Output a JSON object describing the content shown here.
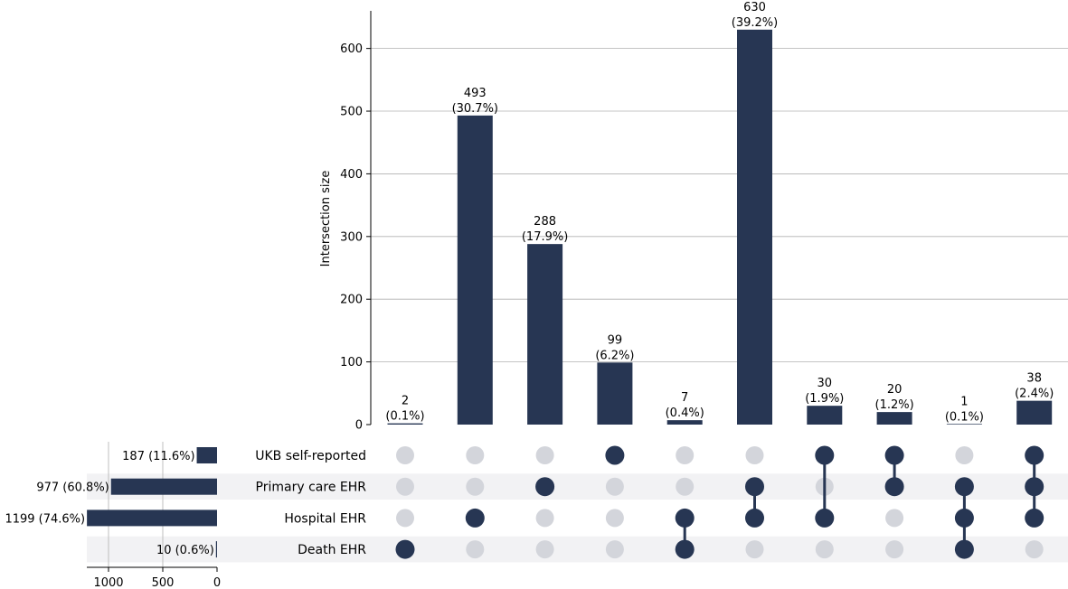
{
  "chart_data": {
    "type": "upset",
    "y_axis_label": "Intersection size",
    "ylim": [
      0,
      660
    ],
    "yticks": [
      0,
      100,
      200,
      300,
      400,
      500,
      600
    ],
    "sets": [
      {
        "name": "UKB self-reported",
        "size": 187,
        "size_label": "187 (11.6%)"
      },
      {
        "name": "Primary care EHR",
        "size": 977,
        "size_label": "977 (60.8%)"
      },
      {
        "name": "Hospital EHR",
        "size": 1199,
        "size_label": "1199 (74.6%)"
      },
      {
        "name": "Death EHR",
        "size": 10,
        "size_label": "10 (0.6%)"
      }
    ],
    "set_size_axis": {
      "ticks": [
        1000,
        500,
        0
      ],
      "max": 1200
    },
    "intersections": [
      {
        "value": 2,
        "count_label": "2",
        "pct_label": "(0.1%)",
        "members": [
          "Death EHR"
        ]
      },
      {
        "value": 493,
        "count_label": "493",
        "pct_label": "(30.7%)",
        "members": [
          "Hospital EHR"
        ]
      },
      {
        "value": 288,
        "count_label": "288",
        "pct_label": "(17.9%)",
        "members": [
          "Primary care EHR"
        ]
      },
      {
        "value": 99,
        "count_label": "99",
        "pct_label": "(6.2%)",
        "members": [
          "UKB self-reported"
        ]
      },
      {
        "value": 7,
        "count_label": "7",
        "pct_label": "(0.4%)",
        "members": [
          "Hospital EHR",
          "Death EHR"
        ]
      },
      {
        "value": 630,
        "count_label": "630",
        "pct_label": "(39.2%)",
        "members": [
          "Primary care EHR",
          "Hospital EHR"
        ]
      },
      {
        "value": 30,
        "count_label": "30",
        "pct_label": "(1.9%)",
        "members": [
          "UKB self-reported",
          "Hospital EHR"
        ]
      },
      {
        "value": 20,
        "count_label": "20",
        "pct_label": "(1.2%)",
        "members": [
          "UKB self-reported",
          "Primary care EHR"
        ]
      },
      {
        "value": 1,
        "count_label": "1",
        "pct_label": "(0.1%)",
        "members": [
          "Primary care EHR",
          "Hospital EHR",
          "Death EHR"
        ]
      },
      {
        "value": 38,
        "count_label": "38",
        "pct_label": "(2.4%)",
        "members": [
          "UKB self-reported",
          "Primary care EHR",
          "Hospital EHR"
        ]
      }
    ],
    "colors": {
      "bar": "#273653",
      "active_dot": "#273653",
      "inactive_dot": "#d3d5db",
      "row_shade": "#f2f2f4",
      "grid": "#b0b0b0"
    }
  }
}
